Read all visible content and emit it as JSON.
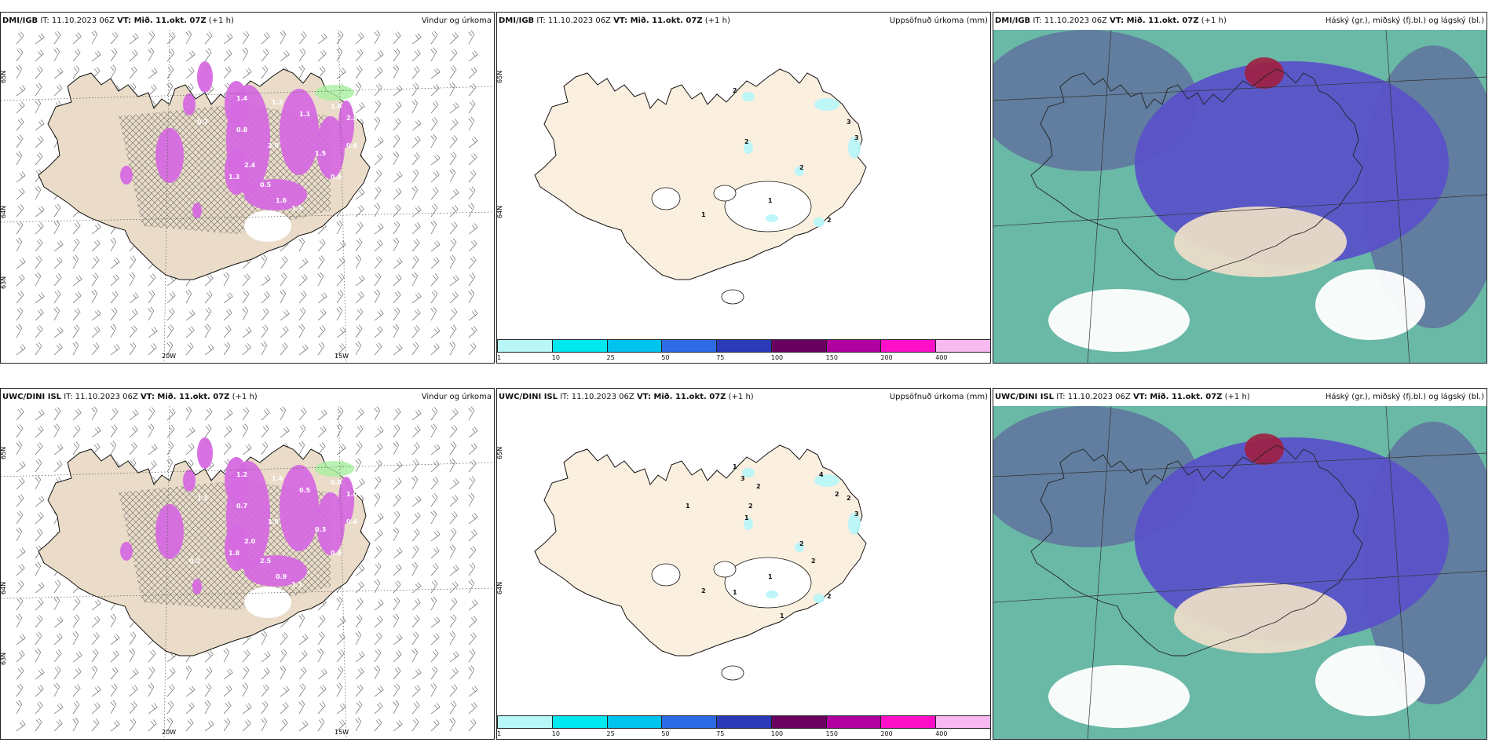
{
  "rows": [
    {
      "model": "DMI/IGB",
      "panels": [
        {
          "type": "wind",
          "title": "Vindur og úrkoma",
          "lat_labels": [
            "65N",
            "64N",
            "63N"
          ],
          "lon_labels": [
            "20W",
            "15W"
          ],
          "labels": [
            "2.4",
            "2.0",
            "1.2",
            "1.6",
            "0.8",
            "1.5",
            "2.5",
            "0.5",
            "1.0",
            "1.1",
            "1.6",
            "1.4",
            "0.7",
            "0.9",
            "1.3",
            "0.6",
            "1.9"
          ]
        },
        {
          "type": "accum",
          "title": "Uppsöfnuð úrkoma (mm)",
          "lat_labels": [
            "65N",
            "64N"
          ],
          "labels": [
            "2",
            "2",
            "3",
            "3",
            "2",
            "1",
            "1",
            "2"
          ]
        },
        {
          "type": "cloud",
          "title": "Háský (gr.), miðský (fj.bl.) og lágský (bl.)"
        }
      ]
    },
    {
      "model": "UWC/DINI ISL",
      "panels": [
        {
          "type": "wind",
          "title": "Vindur og úrkoma",
          "lat_labels": [
            "65N",
            "64N",
            "63N"
          ],
          "lon_labels": [
            "20W",
            "15W"
          ],
          "labels": [
            "2.0",
            "1.9",
            "1.4",
            "0.6",
            "0.7",
            "0.3",
            "1.0",
            "2.5",
            "1.3",
            "0.5",
            "0.9",
            "1.2",
            "1.5",
            "0.8",
            "1.8",
            "0.4",
            "1.1",
            "0.2"
          ]
        },
        {
          "type": "accum",
          "title": "Uppsöfnuð úrkoma (mm)",
          "lat_labels": [
            "65N",
            "64N"
          ],
          "labels": [
            "1",
            "1",
            "2",
            "3",
            "2",
            "2",
            "1",
            "2",
            "3",
            "2",
            "4",
            "2",
            "1",
            "2",
            "1",
            "1",
            "2"
          ]
        },
        {
          "type": "cloud",
          "title": "Háský (gr.), miðský (fj.bl.) og lágský (bl.)"
        }
      ]
    }
  ],
  "header": {
    "it_label": "IT:",
    "it_value": "11.10.2023 06Z",
    "vt_label": "VT: Mið. 11.okt. 07Z",
    "vt_suffix": "(+1 h)"
  },
  "colorbar": {
    "ticks": [
      "1",
      "10",
      "25",
      "50",
      "75",
      "100",
      "150",
      "200",
      "400"
    ],
    "colors": [
      "#b8f6f8",
      "#00e8f0",
      "#00c4ee",
      "#2d6ae6",
      "#2a3ab8",
      "#6a0060",
      "#b000a0",
      "#ff10c8",
      "#f8b8f0"
    ]
  },
  "colors": {
    "land": "#eadcc8",
    "land_accum": "#fbefe0",
    "precip": "#d66ae0",
    "cloud_high": "#5f6e9e",
    "cloud_mid": "#6ab8a6",
    "cloud_low": "#5a52c8"
  }
}
